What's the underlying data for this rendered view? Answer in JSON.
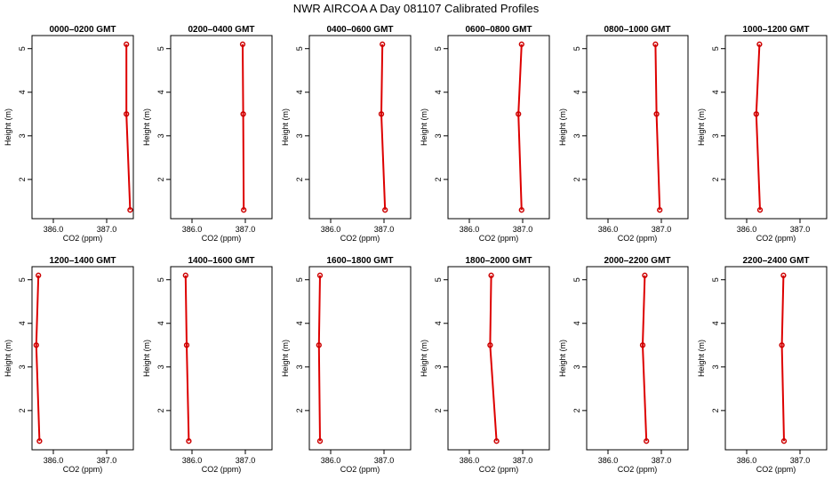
{
  "chart_data": {
    "title": "NWR AIRCOA A  Day 081107  Calibrated Profiles",
    "type": "line",
    "xlabel": "CO2 (ppm)",
    "ylabel": "Height (m)",
    "xlim": [
      385.6,
      387.5
    ],
    "ylim": [
      1.1,
      5.3
    ],
    "x_ticks": [
      386.0,
      387.0
    ],
    "x_tick_labels": [
      "386.0",
      "387.0"
    ],
    "y_ticks": [
      2,
      3,
      4,
      5
    ],
    "y_tick_labels": [
      "2",
      "3",
      "4",
      "5"
    ],
    "heights": [
      5.1,
      3.5,
      1.3
    ],
    "line_color": "#dd0000",
    "point_color": "#cc0000",
    "panels": [
      {
        "title": "0000–0200 GMT",
        "co2": [
          387.37,
          387.37,
          387.44
        ]
      },
      {
        "title": "0200–0400 GMT",
        "co2": [
          386.95,
          386.96,
          386.97
        ]
      },
      {
        "title": "0400–0600 GMT",
        "co2": [
          386.97,
          386.95,
          387.02
        ]
      },
      {
        "title": "0600–0800 GMT",
        "co2": [
          386.98,
          386.92,
          386.98
        ]
      },
      {
        "title": "0800–1000 GMT",
        "co2": [
          386.89,
          386.91,
          386.97
        ]
      },
      {
        "title": "1000–1200 GMT",
        "co2": [
          386.24,
          386.18,
          386.25
        ]
      },
      {
        "title": "1200–1400 GMT",
        "co2": [
          385.72,
          385.68,
          385.74
        ]
      },
      {
        "title": "1400–1600 GMT",
        "co2": [
          385.88,
          385.9,
          385.94
        ]
      },
      {
        "title": "1600–1800 GMT",
        "co2": [
          385.8,
          385.78,
          385.8
        ]
      },
      {
        "title": "1800–2000 GMT",
        "co2": [
          386.41,
          386.39,
          386.51
        ]
      },
      {
        "title": "2000–2200 GMT",
        "co2": [
          386.69,
          386.65,
          386.72
        ]
      },
      {
        "title": "2200–2400 GMT",
        "co2": [
          386.69,
          386.66,
          386.7
        ]
      }
    ]
  }
}
